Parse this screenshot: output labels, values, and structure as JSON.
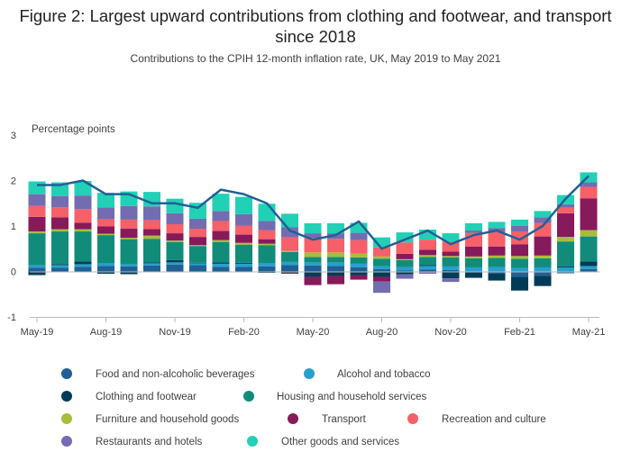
{
  "chart_data": {
    "type": "bar",
    "stacked": true,
    "title": "Figure 2: Largest upward contributions from clothing and footwear, and transport since 2018",
    "subtitle": "Contributions to the CPIH 12-month inflation rate, UK, May 2019 to May 2021",
    "ylabel": "Percentage points",
    "ylim": [
      -1,
      3
    ],
    "yticks": [
      3,
      2,
      1,
      0,
      -1
    ],
    "grid": false,
    "legend_position": "bottom",
    "categories": [
      "May-19",
      "Jun-19",
      "Jul-19",
      "Aug-19",
      "Sep-19",
      "Oct-19",
      "Nov-19",
      "Dec-19",
      "Jan-20",
      "Feb-20",
      "Mar-20",
      "Apr-20",
      "May-20",
      "Jun-20",
      "Jul-20",
      "Aug-20",
      "Sep-20",
      "Oct-20",
      "Nov-20",
      "Dec-20",
      "Jan-21",
      "Feb-21",
      "Mar-21",
      "Apr-21",
      "May-21"
    ],
    "xtick_labels": [
      "May-19",
      "Aug-19",
      "Nov-19",
      "Feb-20",
      "May-20",
      "Aug-20",
      "Nov-20",
      "Feb-21",
      "May-21"
    ],
    "xtick_indices": [
      0,
      3,
      6,
      9,
      12,
      15,
      18,
      21,
      24
    ],
    "series": [
      {
        "name": "Food and non-alcoholic beverages",
        "color": "#206095",
        "values": [
          0.08,
          0.08,
          0.1,
          0.12,
          0.11,
          0.13,
          0.15,
          0.14,
          0.1,
          0.1,
          0.11,
          0.14,
          0.13,
          0.12,
          0.09,
          0.05,
          0.02,
          0.04,
          0.03,
          -0.02,
          -0.05,
          -0.12,
          -0.1,
          -0.04,
          0.05
        ]
      },
      {
        "name": "Alcohol and tobacco",
        "color": "#27a0cc",
        "values": [
          0.06,
          0.06,
          0.06,
          0.06,
          0.05,
          0.05,
          0.05,
          0.04,
          0.07,
          0.07,
          0.07,
          0.07,
          0.07,
          0.08,
          0.08,
          0.07,
          0.08,
          0.08,
          0.08,
          0.09,
          0.1,
          0.08,
          0.09,
          0.09,
          0.07
        ]
      },
      {
        "name": "Clothing and footwear",
        "color": "#003c57",
        "values": [
          -0.08,
          0.02,
          0.06,
          -0.05,
          -0.06,
          0.02,
          0.05,
          0.01,
          0.03,
          0.02,
          -0.03,
          -0.03,
          -0.12,
          -0.1,
          -0.08,
          -0.12,
          -0.06,
          0.02,
          -0.15,
          -0.12,
          -0.15,
          -0.3,
          -0.22,
          0.02,
          0.1
        ]
      },
      {
        "name": "Housing and household services",
        "color": "#118c7b",
        "values": [
          0.7,
          0.72,
          0.66,
          0.62,
          0.55,
          0.52,
          0.4,
          0.37,
          0.45,
          0.4,
          0.4,
          0.22,
          0.12,
          0.12,
          0.14,
          0.16,
          0.15,
          0.18,
          0.2,
          0.2,
          0.2,
          0.2,
          0.2,
          0.55,
          0.55
        ]
      },
      {
        "name": "Furniture and household goods",
        "color": "#a8bd3a",
        "values": [
          0.04,
          0.05,
          0.05,
          0.03,
          0.03,
          0.07,
          0.03,
          0.02,
          0.04,
          0.04,
          0.03,
          0.02,
          0.1,
          0.1,
          0.08,
          0.05,
          0.02,
          0.04,
          0.03,
          0.04,
          0.05,
          0.06,
          0.06,
          0.1,
          0.14
        ]
      },
      {
        "name": "Transport",
        "color": "#871a5b",
        "values": [
          0.32,
          0.26,
          0.14,
          0.16,
          0.2,
          0.14,
          0.16,
          0.18,
          0.2,
          0.18,
          0.1,
          -0.02,
          -0.18,
          -0.18,
          -0.1,
          -0.1,
          0.12,
          0.12,
          0.1,
          0.22,
          0.2,
          0.26,
          0.42,
          0.52,
          0.7
        ]
      },
      {
        "name": "Recreation and culture",
        "color": "#f66068",
        "values": [
          0.24,
          0.22,
          0.3,
          0.16,
          0.2,
          0.2,
          0.2,
          0.18,
          0.22,
          0.2,
          0.2,
          0.3,
          0.32,
          0.3,
          0.3,
          0.2,
          0.25,
          0.22,
          0.22,
          0.3,
          0.32,
          0.28,
          0.3,
          0.12,
          0.25
        ]
      },
      {
        "name": "Restaurants and hotels",
        "color": "#746cb1",
        "values": [
          0.26,
          0.25,
          0.3,
          0.26,
          0.3,
          0.3,
          0.24,
          0.22,
          0.22,
          0.25,
          0.2,
          0.22,
          0.1,
          0.12,
          0.16,
          -0.25,
          -0.1,
          -0.05,
          -0.08,
          0.05,
          0.08,
          0.12,
          0.12,
          0.08,
          0.1
        ]
      },
      {
        "name": "Other goods and services",
        "color": "#22d0b6",
        "values": [
          0.28,
          0.3,
          0.32,
          0.32,
          0.32,
          0.32,
          0.32,
          0.35,
          0.38,
          0.38,
          0.38,
          0.3,
          0.22,
          0.22,
          0.22,
          0.22,
          0.22,
          0.22,
          0.18,
          0.16,
          0.14,
          0.14,
          0.14,
          0.2,
          0.22
        ]
      }
    ],
    "line": {
      "name": "CPIH 12-month inflation rate",
      "color": "#206095",
      "values": [
        1.9,
        1.9,
        2.0,
        1.7,
        1.7,
        1.5,
        1.5,
        1.4,
        1.8,
        1.7,
        1.5,
        0.9,
        0.7,
        0.8,
        1.1,
        0.5,
        0.7,
        0.9,
        0.6,
        0.8,
        0.9,
        0.7,
        1.0,
        1.6,
        2.1
      ]
    }
  }
}
